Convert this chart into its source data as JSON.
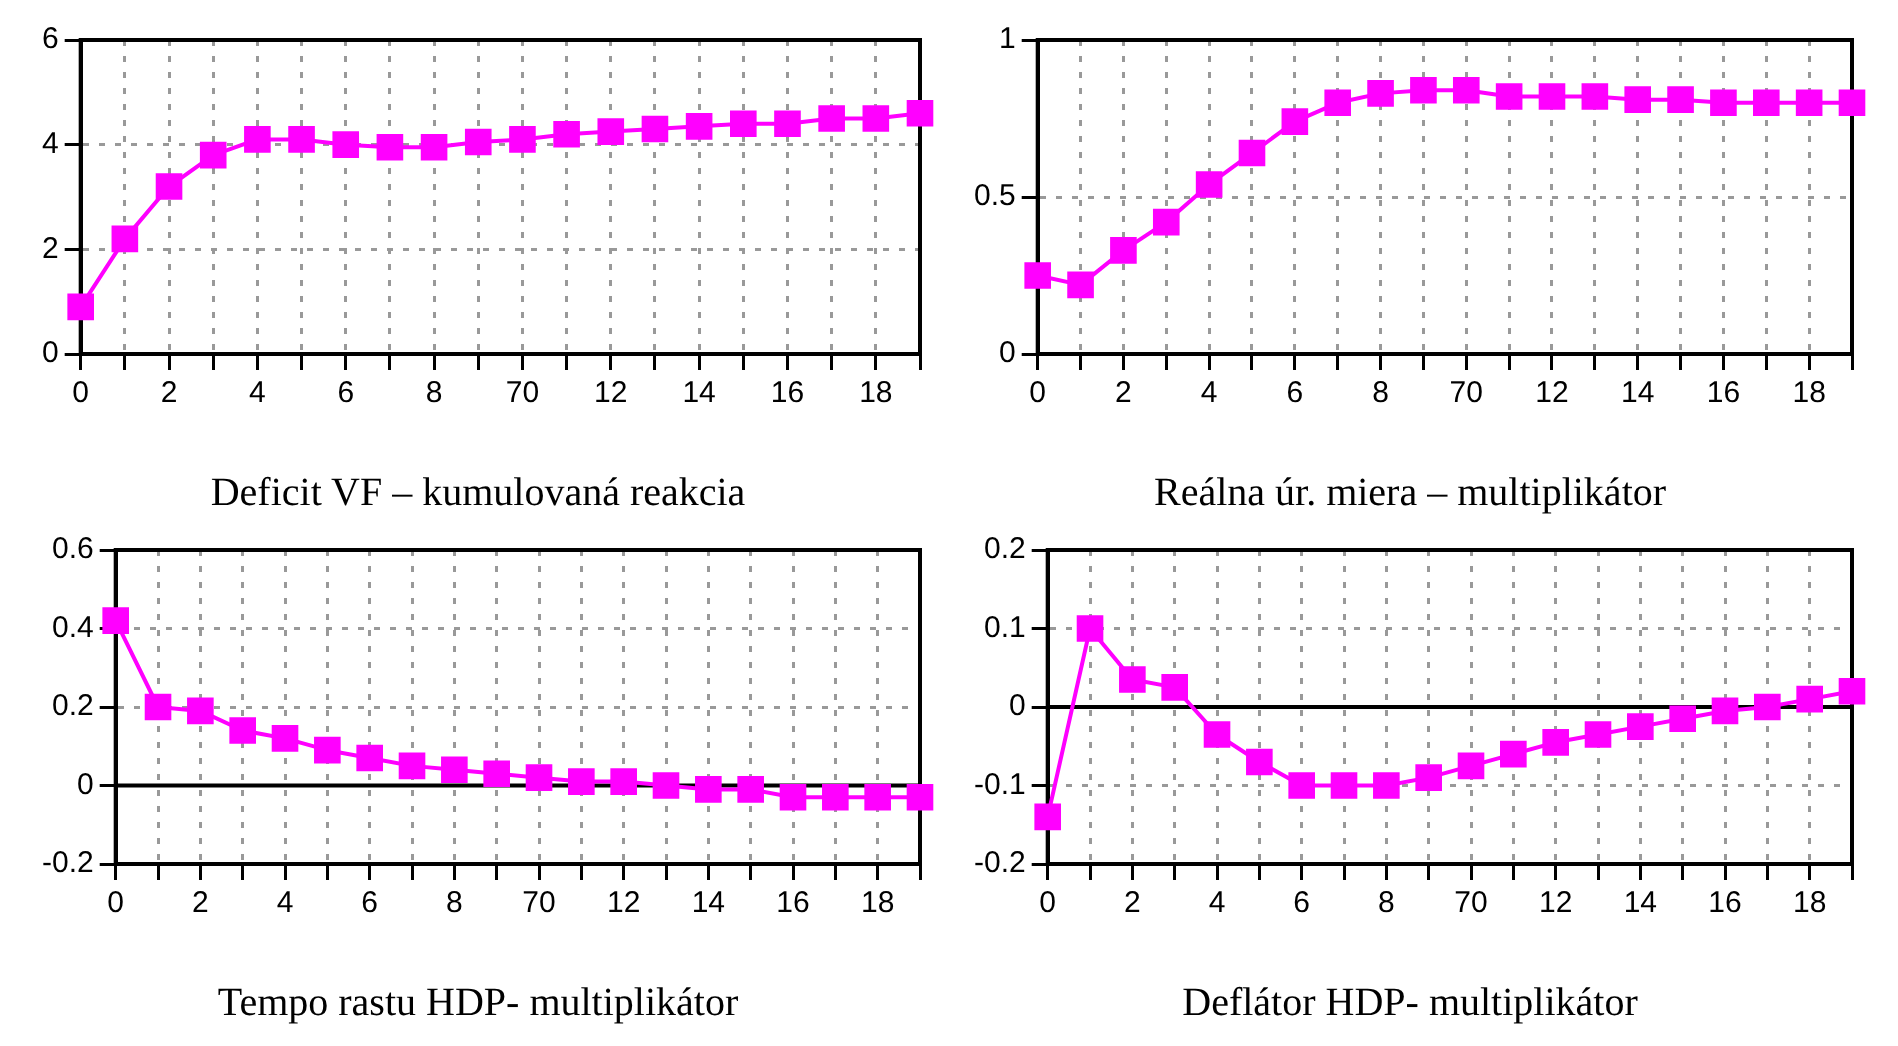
{
  "chart_data": [
    {
      "type": "line",
      "title": "Deficit VF – kumulovaná reakcia",
      "categories": [
        "0",
        null,
        "2",
        null,
        "4",
        null,
        "6",
        null,
        "8",
        null,
        "70",
        null,
        "12",
        null,
        "14",
        null,
        "16",
        null,
        "18",
        null
      ],
      "color": "#ff00ff",
      "marker": "square",
      "grid": true,
      "ylim": [
        0,
        6
      ],
      "yticks": [
        0,
        2,
        4,
        6
      ],
      "values": [
        0.9,
        2.2,
        3.2,
        3.8,
        4.1,
        4.1,
        4.0,
        3.95,
        3.95,
        4.05,
        4.1,
        4.2,
        4.25,
        4.3,
        4.35,
        4.4,
        4.4,
        4.5,
        4.5,
        4.6
      ]
    },
    {
      "type": "line",
      "title": "Reálna úr. miera – multiplikátor",
      "categories": [
        "0",
        null,
        "2",
        null,
        "4",
        null,
        "6",
        null,
        "8",
        null,
        "70",
        null,
        "12",
        null,
        "14",
        null,
        "16",
        null,
        "18",
        null
      ],
      "color": "#ff00ff",
      "marker": "square",
      "grid": true,
      "ylim": [
        0,
        1
      ],
      "yticks": [
        0,
        0.5,
        1
      ],
      "values": [
        0.25,
        0.22,
        0.33,
        0.42,
        0.54,
        0.64,
        0.74,
        0.8,
        0.83,
        0.84,
        0.84,
        0.82,
        0.82,
        0.82,
        0.81,
        0.81,
        0.8,
        0.8,
        0.8,
        0.8
      ]
    },
    {
      "type": "line",
      "title": "Tempo rastu HDP- multiplikátor",
      "categories": [
        "0",
        null,
        "2",
        null,
        "4",
        null,
        "6",
        null,
        "8",
        null,
        "70",
        null,
        "12",
        null,
        "14",
        null,
        "16",
        null,
        "18",
        null
      ],
      "color": "#ff00ff",
      "marker": "square",
      "grid": true,
      "ylim": [
        -0.2,
        0.6
      ],
      "yticks": [
        -0.2,
        0,
        0.2,
        0.4,
        0.6
      ],
      "values": [
        0.42,
        0.2,
        0.19,
        0.14,
        0.12,
        0.09,
        0.07,
        0.05,
        0.04,
        0.03,
        0.02,
        0.01,
        0.01,
        0.0,
        -0.01,
        -0.01,
        -0.03,
        -0.03,
        -0.03,
        -0.03
      ]
    },
    {
      "type": "line",
      "title": "Deflátor HDP- multiplikátor",
      "categories": [
        "0",
        null,
        "2",
        null,
        "4",
        null,
        "6",
        null,
        "8",
        null,
        "70",
        null,
        "12",
        null,
        "14",
        null,
        "16",
        null,
        "18",
        null
      ],
      "color": "#ff00ff",
      "marker": "square",
      "grid": true,
      "ylim": [
        -0.2,
        0.2
      ],
      "yticks": [
        -0.2,
        -0.1,
        0,
        0.1,
        0.2
      ],
      "values": [
        -0.14,
        0.1,
        0.035,
        0.025,
        -0.035,
        -0.07,
        -0.1,
        -0.1,
        -0.1,
        -0.09,
        -0.075,
        -0.06,
        -0.045,
        -0.035,
        -0.025,
        -0.015,
        -0.005,
        0.0,
        0.01,
        0.02
      ]
    }
  ]
}
